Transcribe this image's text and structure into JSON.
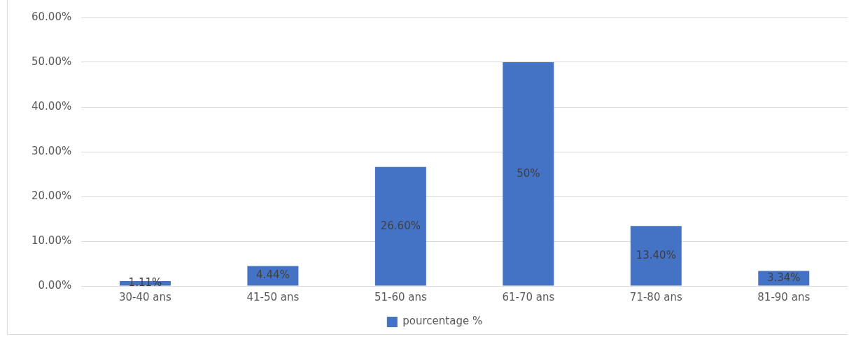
{
  "chart_data": {
    "type": "bar",
    "categories": [
      "30-40 ans",
      "41-50 ans",
      "51-60 ans",
      "61-70 ans",
      "71-80 ans",
      "81-90 ans"
    ],
    "series": [
      {
        "name": "pourcentage %",
        "color": "#4472c4",
        "values": [
          1.11,
          4.44,
          26.6,
          50,
          13.4,
          3.34
        ],
        "value_labels": [
          "1.11%",
          "4.44%",
          "26.60%",
          "50%",
          "13.40%",
          "3.34%"
        ]
      }
    ],
    "ylim": [
      0,
      60
    ],
    "yticks": [
      {
        "value": 0,
        "label": "0.00%"
      },
      {
        "value": 10,
        "label": "10.00%"
      },
      {
        "value": 20,
        "label": "20.00%"
      },
      {
        "value": 30,
        "label": "30.00%"
      },
      {
        "value": 40,
        "label": "40.00%"
      },
      {
        "value": 50,
        "label": "50.00%"
      },
      {
        "value": 60,
        "label": "60.00%"
      }
    ],
    "grid": "y",
    "legend": "bottom"
  }
}
